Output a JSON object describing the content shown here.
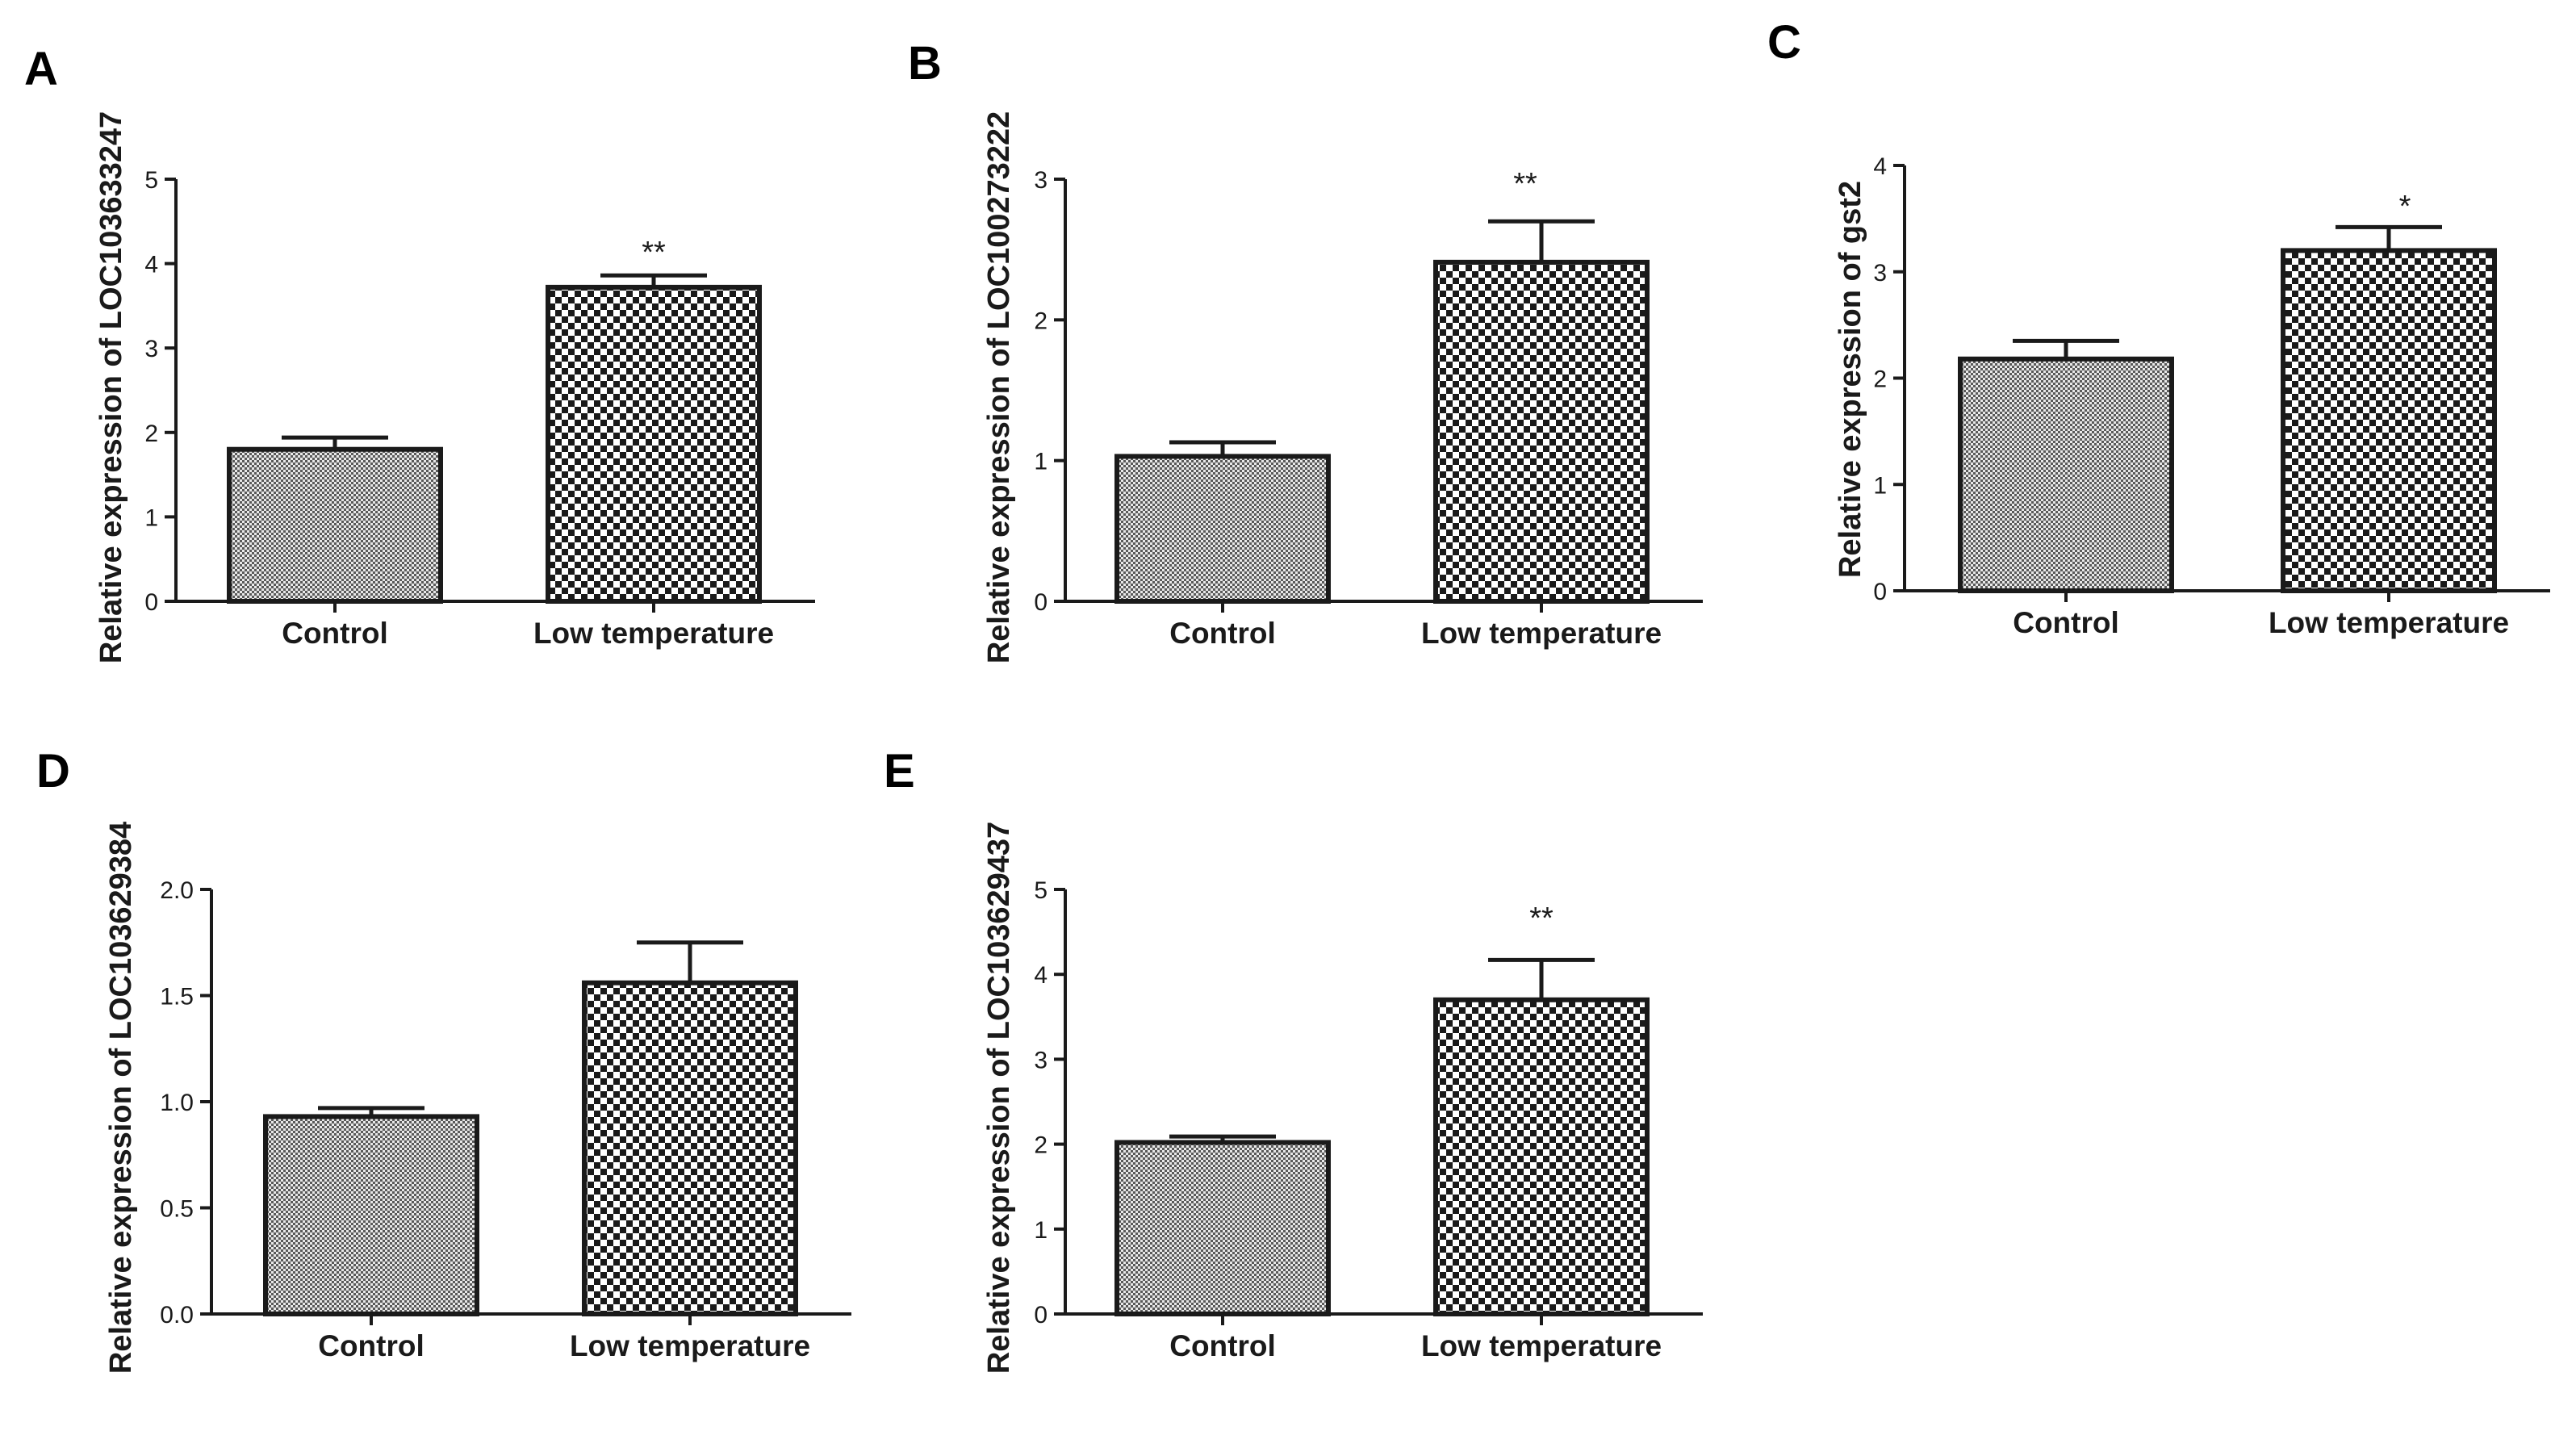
{
  "chart_data": [
    {
      "type": "bar",
      "panel": "A",
      "categories": [
        "Control",
        "Low temperature"
      ],
      "values": [
        1.8,
        3.72
      ],
      "errors": [
        0.14,
        0.14
      ],
      "significance": [
        "",
        "**"
      ],
      "ylabel": "Relative expression of LOC103633247",
      "ylim": [
        0,
        5
      ],
      "yticks": [
        0,
        1,
        2,
        3,
        4,
        5
      ],
      "ytick_labels": [
        "0",
        "1",
        "2",
        "3",
        "4",
        "5"
      ]
    },
    {
      "type": "bar",
      "panel": "B",
      "categories": [
        "Control",
        "Low temperature"
      ],
      "values": [
        1.03,
        2.41
      ],
      "errors": [
        0.1,
        0.29
      ],
      "significance": [
        "",
        "**"
      ],
      "ylabel": "Relative expression of LOC100273222",
      "ylim": [
        0,
        3
      ],
      "yticks": [
        0,
        1,
        2,
        3
      ],
      "ytick_labels": [
        "0",
        "1",
        "2",
        "3"
      ]
    },
    {
      "type": "bar",
      "panel": "C",
      "categories": [
        "Control",
        "Low temperature"
      ],
      "values": [
        2.18,
        3.2
      ],
      "errors": [
        0.17,
        0.22
      ],
      "significance": [
        "",
        "*"
      ],
      "ylabel": "Relative expression of  gst2",
      "ylim": [
        0,
        4
      ],
      "yticks": [
        0,
        1,
        2,
        3,
        4
      ],
      "ytick_labels": [
        "0",
        "1",
        "2",
        "3",
        "4"
      ]
    },
    {
      "type": "bar",
      "panel": "D",
      "categories": [
        "Control",
        "Low temperature"
      ],
      "values": [
        0.93,
        1.56
      ],
      "errors": [
        0.04,
        0.19
      ],
      "significance": [
        "",
        ""
      ],
      "ylabel": "Relative expression of LOC103629384",
      "ylim": [
        0,
        2.0
      ],
      "yticks": [
        0,
        0.5,
        1.0,
        1.5,
        2.0
      ],
      "ytick_labels": [
        "0.0",
        "0.5",
        "1.0",
        "1.5",
        "2.0"
      ]
    },
    {
      "type": "bar",
      "panel": "E",
      "categories": [
        "Control",
        "Low temperature"
      ],
      "values": [
        2.02,
        3.7
      ],
      "errors": [
        0.07,
        0.47
      ],
      "significance": [
        "",
        "**"
      ],
      "ylabel": "Relative expression of LOC103629437",
      "ylim": [
        0,
        5
      ],
      "yticks": [
        0,
        1,
        2,
        3,
        4,
        5
      ],
      "ytick_labels": [
        "0",
        "1",
        "2",
        "3",
        "4",
        "5"
      ]
    }
  ]
}
